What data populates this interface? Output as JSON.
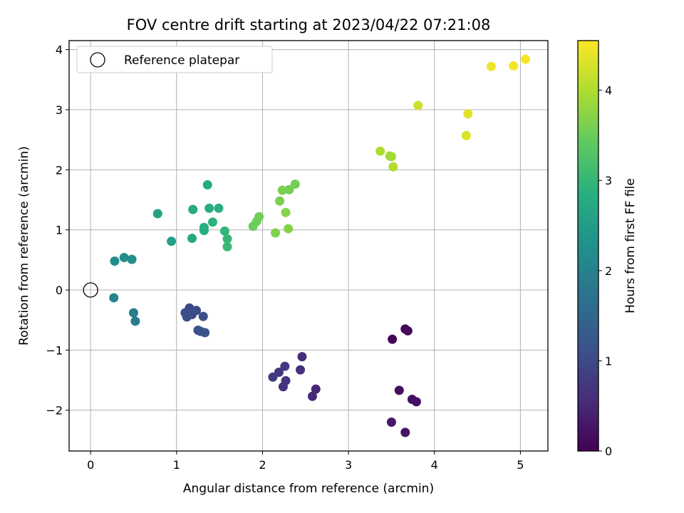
{
  "chart_data": {
    "type": "scatter",
    "title": "FOV centre drift starting at 2023/04/22 07:21:08",
    "xlabel": "Angular distance from reference (arcmin)",
    "ylabel": "Rotation from reference (arcmin)",
    "xlim": [
      -0.25,
      5.32
    ],
    "ylim": [
      -2.68,
      4.15
    ],
    "xticks": [
      "0",
      "1",
      "2",
      "3",
      "4",
      "5"
    ],
    "yticks": [
      "−2",
      "−1",
      "0",
      "1",
      "2",
      "3",
      "4"
    ],
    "grid": true,
    "legend": {
      "placement": "upper-left",
      "entries": [
        "Reference platepar"
      ]
    },
    "reference_point": {
      "x": 0,
      "y": 0
    },
    "colorbar": {
      "label": "Hours from first FF file",
      "range": [
        0,
        4.55
      ],
      "ticks": [
        "0",
        "1",
        "2",
        "3",
        "4"
      ],
      "colormap": "viridis"
    },
    "points": [
      {
        "x": 3.51,
        "y": -0.82,
        "c": 0.05
      },
      {
        "x": 3.66,
        "y": -0.65,
        "c": 0.08
      },
      {
        "x": 3.69,
        "y": -0.68,
        "c": 0.1
      },
      {
        "x": 3.59,
        "y": -1.67,
        "c": 0.15
      },
      {
        "x": 3.74,
        "y": -1.82,
        "c": 0.18
      },
      {
        "x": 3.79,
        "y": -1.86,
        "c": 0.2
      },
      {
        "x": 3.5,
        "y": -2.2,
        "c": 0.3
      },
      {
        "x": 3.66,
        "y": -2.37,
        "c": 0.25
      },
      {
        "x": 2.46,
        "y": -1.11,
        "c": 0.55
      },
      {
        "x": 2.44,
        "y": -1.33,
        "c": 0.6
      },
      {
        "x": 2.62,
        "y": -1.65,
        "c": 0.5
      },
      {
        "x": 2.58,
        "y": -1.77,
        "c": 0.52
      },
      {
        "x": 2.26,
        "y": -1.27,
        "c": 0.7
      },
      {
        "x": 2.19,
        "y": -1.37,
        "c": 0.72
      },
      {
        "x": 2.12,
        "y": -1.45,
        "c": 0.75
      },
      {
        "x": 2.27,
        "y": -1.51,
        "c": 0.68
      },
      {
        "x": 2.24,
        "y": -1.61,
        "c": 0.66
      },
      {
        "x": 1.15,
        "y": -0.3,
        "c": 1.0
      },
      {
        "x": 1.23,
        "y": -0.34,
        "c": 1.02
      },
      {
        "x": 1.1,
        "y": -0.38,
        "c": 1.05
      },
      {
        "x": 1.18,
        "y": -0.41,
        "c": 1.08
      },
      {
        "x": 1.31,
        "y": -0.44,
        "c": 1.1
      },
      {
        "x": 1.12,
        "y": -0.45,
        "c": 1.07
      },
      {
        "x": 1.25,
        "y": -0.67,
        "c": 1.12
      },
      {
        "x": 1.28,
        "y": -0.69,
        "c": 1.15
      },
      {
        "x": 1.33,
        "y": -0.71,
        "c": 1.17
      },
      {
        "x": 0.27,
        "y": -0.13,
        "c": 2.0
      },
      {
        "x": 0.5,
        "y": -0.38,
        "c": 1.95
      },
      {
        "x": 0.52,
        "y": -0.52,
        "c": 1.9
      },
      {
        "x": 0.28,
        "y": 0.48,
        "c": 2.2
      },
      {
        "x": 0.39,
        "y": 0.54,
        "c": 2.22
      },
      {
        "x": 0.48,
        "y": 0.51,
        "c": 2.25
      },
      {
        "x": 0.78,
        "y": 1.27,
        "c": 2.6
      },
      {
        "x": 0.94,
        "y": 0.81,
        "c": 2.55
      },
      {
        "x": 1.18,
        "y": 0.86,
        "c": 2.7
      },
      {
        "x": 1.19,
        "y": 1.34,
        "c": 2.75
      },
      {
        "x": 1.32,
        "y": 0.99,
        "c": 2.8
      },
      {
        "x": 1.32,
        "y": 1.04,
        "c": 2.85
      },
      {
        "x": 1.36,
        "y": 1.75,
        "c": 2.78
      },
      {
        "x": 1.38,
        "y": 1.36,
        "c": 2.82
      },
      {
        "x": 1.42,
        "y": 1.13,
        "c": 2.9
      },
      {
        "x": 1.49,
        "y": 1.36,
        "c": 2.88
      },
      {
        "x": 1.56,
        "y": 0.98,
        "c": 2.95
      },
      {
        "x": 1.59,
        "y": 0.85,
        "c": 3.0
      },
      {
        "x": 1.59,
        "y": 0.72,
        "c": 3.05
      },
      {
        "x": 1.89,
        "y": 1.06,
        "c": 3.5
      },
      {
        "x": 1.93,
        "y": 1.14,
        "c": 3.52
      },
      {
        "x": 1.96,
        "y": 1.22,
        "c": 3.55
      },
      {
        "x": 2.15,
        "y": 0.95,
        "c": 3.65
      },
      {
        "x": 2.2,
        "y": 1.48,
        "c": 3.6
      },
      {
        "x": 2.23,
        "y": 1.66,
        "c": 3.62
      },
      {
        "x": 2.27,
        "y": 1.29,
        "c": 3.7
      },
      {
        "x": 2.3,
        "y": 1.02,
        "c": 3.68
      },
      {
        "x": 2.31,
        "y": 1.67,
        "c": 3.58
      },
      {
        "x": 2.38,
        "y": 1.76,
        "c": 3.56
      },
      {
        "x": 3.37,
        "y": 2.31,
        "c": 4.0
      },
      {
        "x": 3.48,
        "y": 2.23,
        "c": 3.95
      },
      {
        "x": 3.5,
        "y": 2.22,
        "c": 3.92
      },
      {
        "x": 3.52,
        "y": 2.05,
        "c": 4.02
      },
      {
        "x": 3.81,
        "y": 3.07,
        "c": 4.2
      },
      {
        "x": 4.37,
        "y": 2.57,
        "c": 4.3
      },
      {
        "x": 4.39,
        "y": 2.93,
        "c": 4.35
      },
      {
        "x": 4.66,
        "y": 3.72,
        "c": 4.45
      },
      {
        "x": 4.92,
        "y": 3.73,
        "c": 4.48
      },
      {
        "x": 5.06,
        "y": 3.84,
        "c": 4.5
      }
    ]
  }
}
